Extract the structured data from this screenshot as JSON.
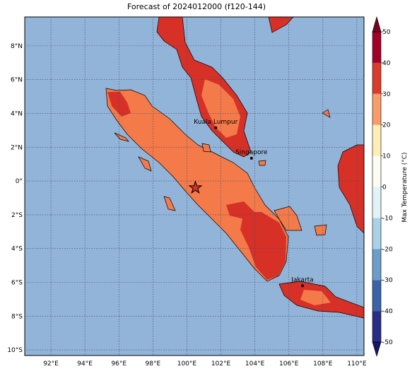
{
  "title": "Forecast of 2024012000 (f120-144)",
  "map": {
    "lonlim": [
      90.46,
      110.42
    ],
    "latlim": [
      -10.33,
      9.71
    ],
    "lonticks": [
      {
        "value": 92,
        "label": "92°E"
      },
      {
        "value": 94,
        "label": "94°E"
      },
      {
        "value": 96,
        "label": "96°E"
      },
      {
        "value": 98,
        "label": "98°E"
      },
      {
        "value": 100,
        "label": "100°E"
      },
      {
        "value": 102,
        "label": "102°E"
      },
      {
        "value": 104,
        "label": "104°E"
      },
      {
        "value": 106,
        "label": "106°E"
      },
      {
        "value": 108,
        "label": "108°E"
      },
      {
        "value": 110,
        "label": "110°E"
      }
    ],
    "latticks": [
      {
        "value": 8,
        "label": "8°N"
      },
      {
        "value": 6,
        "label": "6°N"
      },
      {
        "value": 4,
        "label": "4°N"
      },
      {
        "value": 2,
        "label": "2°N"
      },
      {
        "value": 0,
        "label": "0°"
      },
      {
        "value": -2,
        "label": "2°S"
      },
      {
        "value": -4,
        "label": "4°S"
      },
      {
        "value": -6,
        "label": "6°S"
      },
      {
        "value": -8,
        "label": "8°S"
      },
      {
        "value": -10,
        "label": "10°S"
      }
    ],
    "cities": [
      {
        "name": "Kuala Lumpur",
        "lon": 101.7,
        "lat": 3.15
      },
      {
        "name": "Singapore",
        "lon": 103.8,
        "lat": 1.35
      },
      {
        "name": "Jakarta",
        "lon": 106.8,
        "lat": -6.2
      }
    ],
    "marker": {
      "lon": 100.5,
      "lat": -0.4
    }
  },
  "colorbar": {
    "label": "Max Temperature (°C)",
    "levels": [
      -50,
      -40,
      -30,
      -20,
      -10,
      0,
      10,
      20,
      30,
      40,
      50
    ],
    "colors": [
      "#2a2c86",
      "#3b63a9",
      "#6d9dcb",
      "#a9d2e6",
      "#e2f3f8",
      "#fbfdf0",
      "#fdeeb8",
      "#f89c68",
      "#dc3b2c",
      "#a20027"
    ],
    "under_color": "#161668",
    "over_color": "#7a0020"
  }
}
